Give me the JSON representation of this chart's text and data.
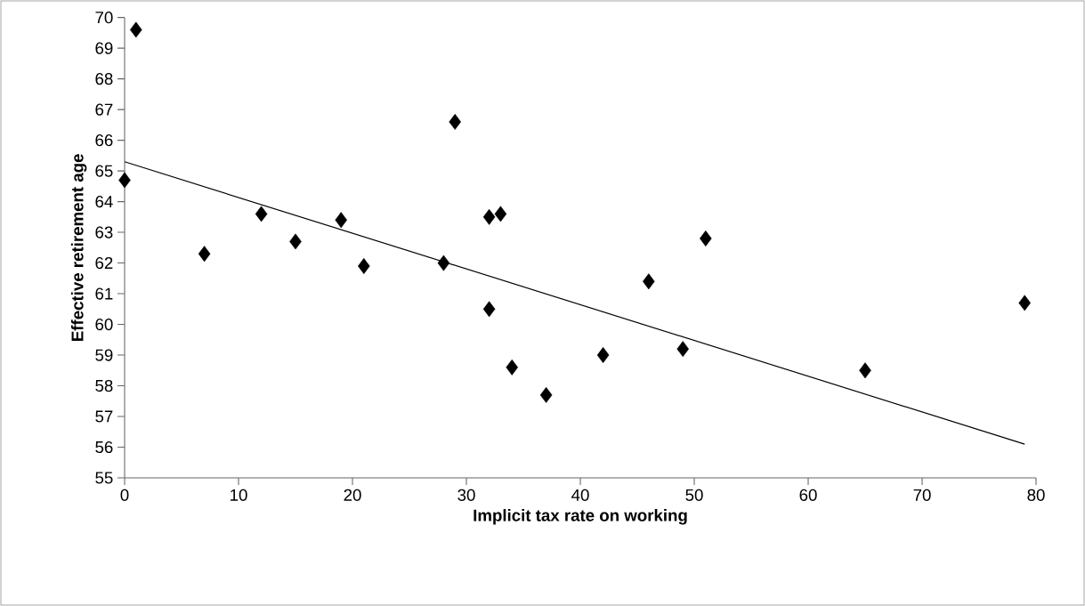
{
  "chart_data": {
    "type": "scatter",
    "xlabel": "Implicit tax rate on working",
    "ylabel": "Effective retirement age",
    "xlim": [
      0,
      80
    ],
    "ylim": [
      55,
      70
    ],
    "xticks": [
      0,
      10,
      20,
      30,
      40,
      50,
      60,
      70,
      80
    ],
    "yticks": [
      55,
      56,
      57,
      58,
      59,
      60,
      61,
      62,
      63,
      64,
      65,
      66,
      67,
      68,
      69,
      70
    ],
    "series": [
      {
        "type": "scatter",
        "marker": "diamond",
        "color": "#000000",
        "x": [
          0,
          1,
          7,
          12,
          15,
          19,
          21,
          28,
          29,
          32,
          33,
          32,
          34,
          37,
          42,
          46,
          49,
          51,
          65,
          79
        ],
        "values": [
          64.7,
          69.6,
          62.3,
          63.6,
          62.7,
          63.4,
          61.9,
          62.0,
          66.6,
          63.5,
          63.6,
          60.5,
          58.6,
          57.7,
          59.0,
          61.4,
          59.2,
          62.8,
          58.5,
          60.7
        ]
      },
      {
        "type": "line",
        "marker": "none",
        "color": "#000000",
        "x": [
          0,
          79
        ],
        "values": [
          65.3,
          56.1
        ]
      }
    ]
  }
}
